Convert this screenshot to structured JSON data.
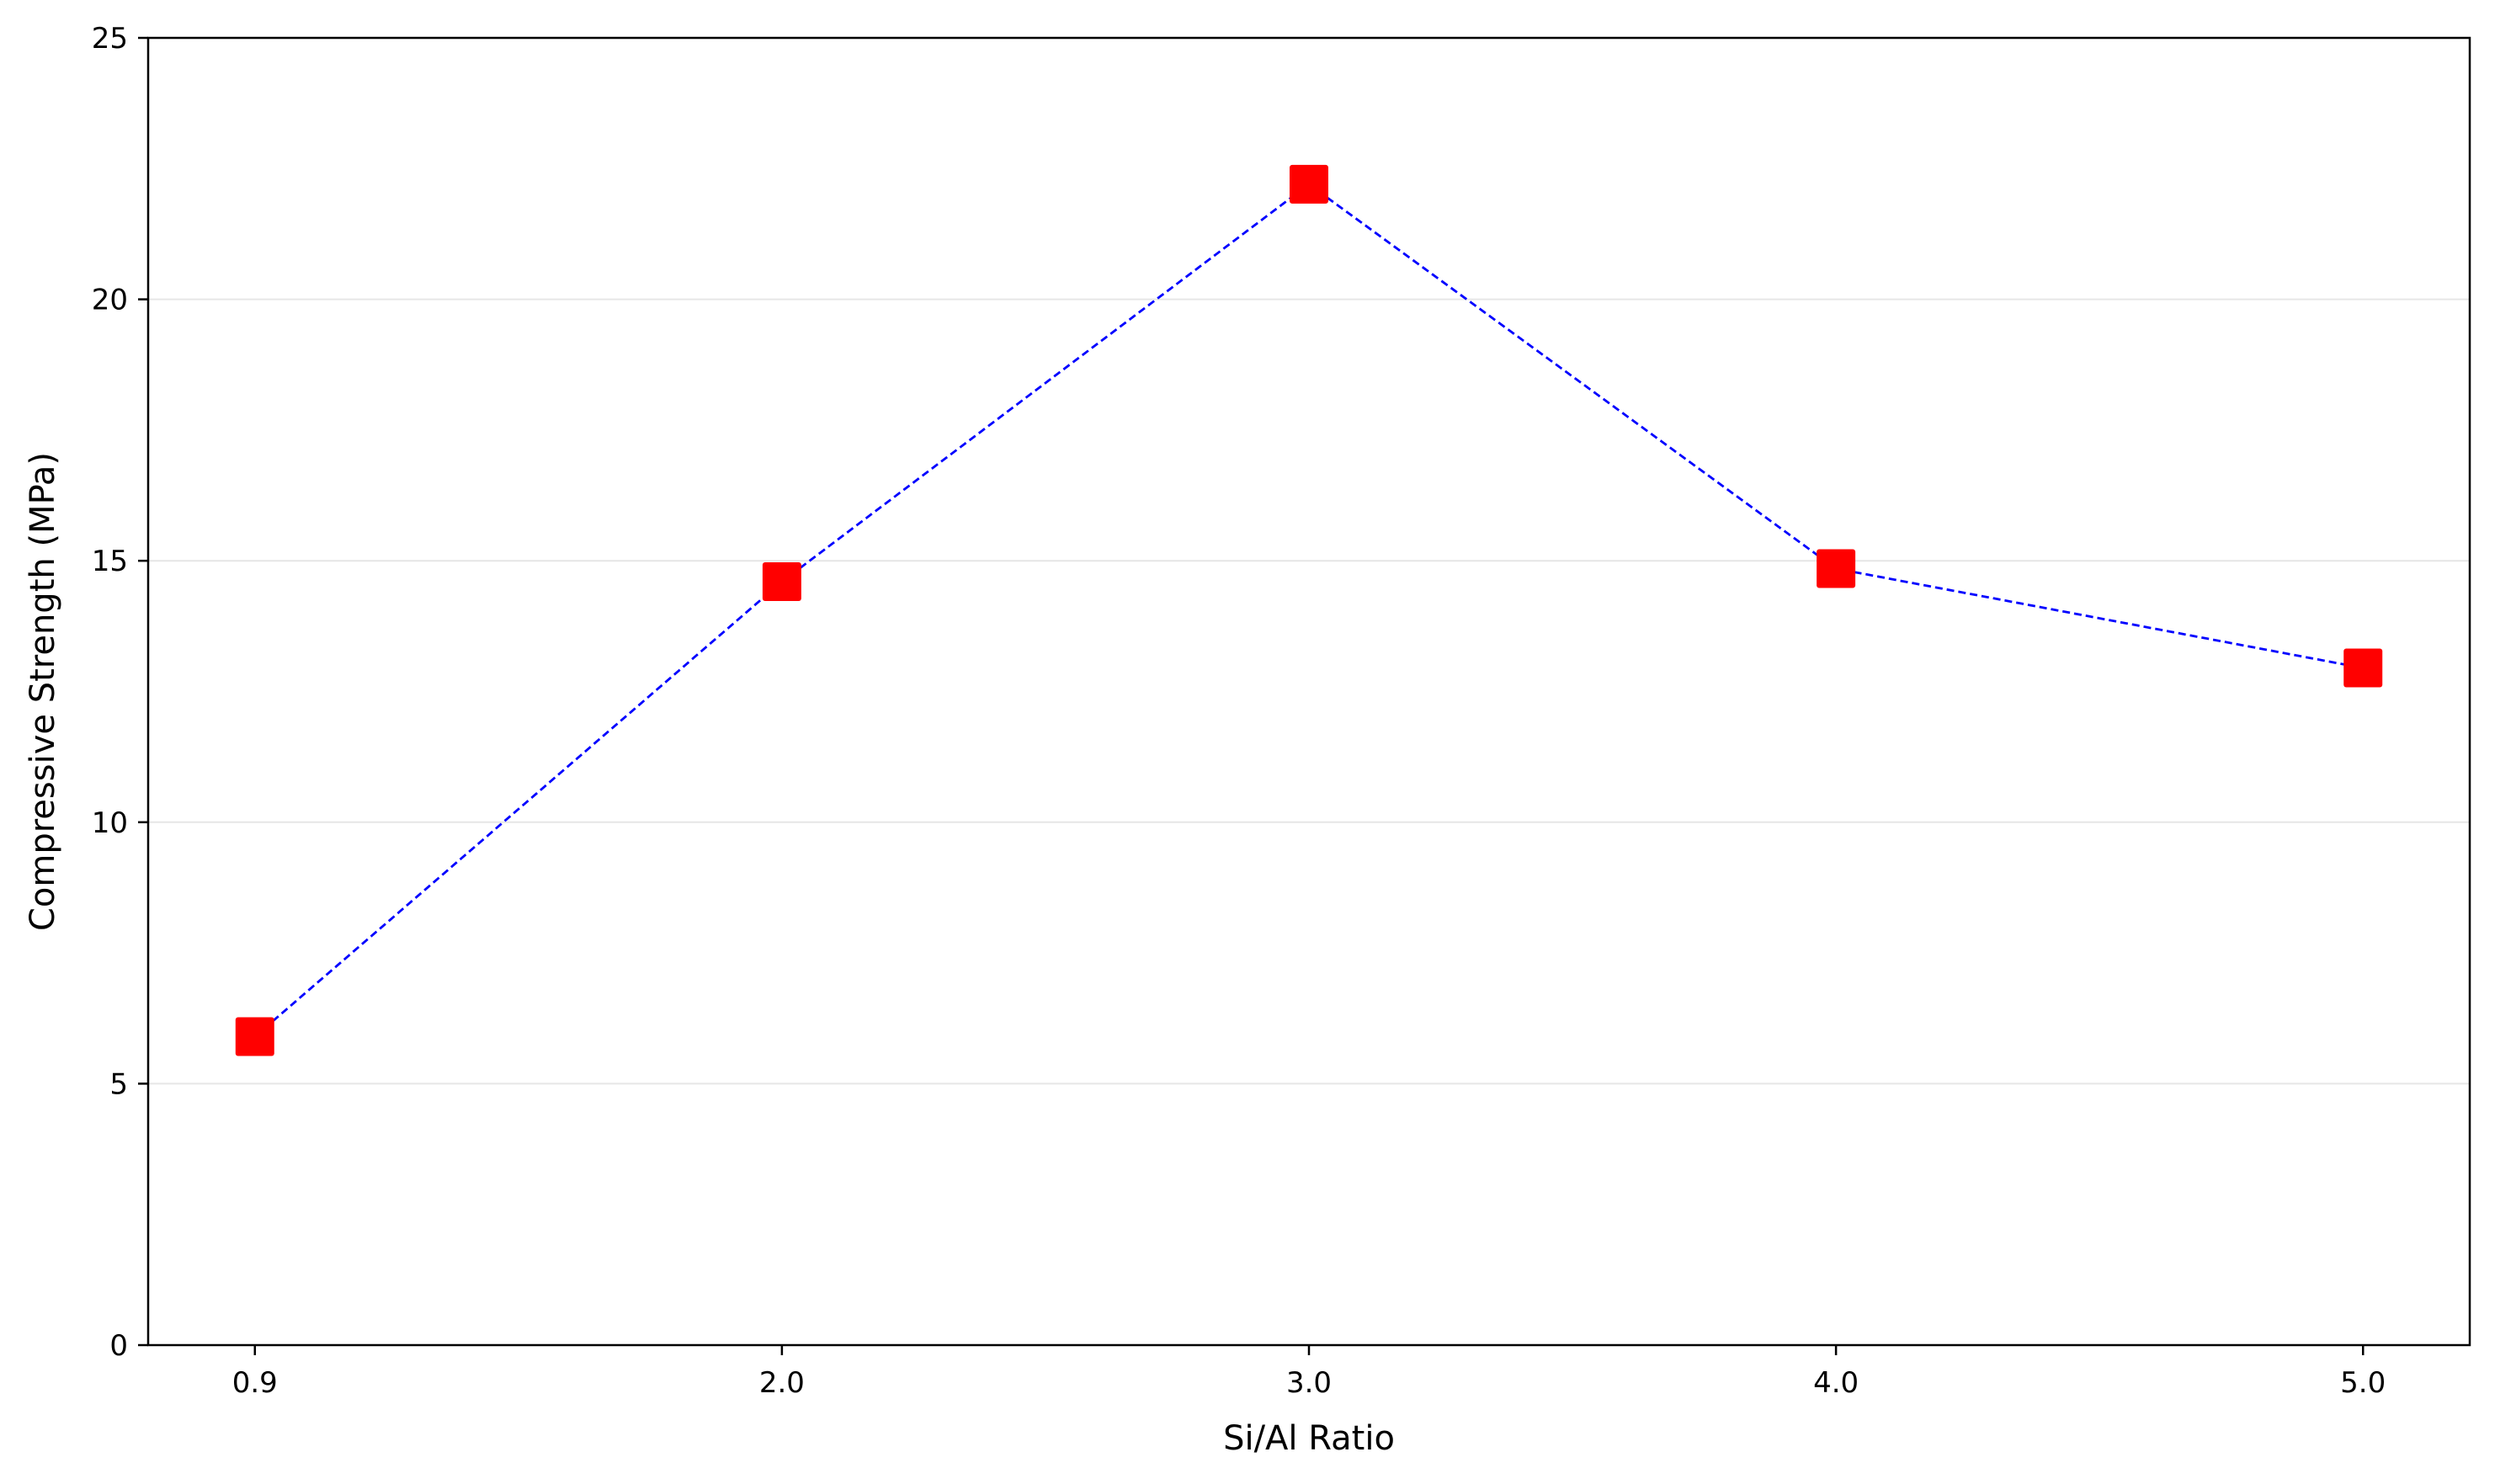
{
  "chart_data": {
    "type": "line",
    "title": "",
    "xlabel": "Si/Al Ratio",
    "ylabel": "Compressive Strength (MPa)",
    "categories": [
      "0.9",
      "2.0",
      "3.0",
      "4.0",
      "5.0"
    ],
    "series": [
      {
        "values": [
          5.9,
          14.6,
          22.2,
          14.85,
          12.95
        ],
        "line_color": "#0000ff",
        "line_style": "dashed",
        "marker": "square",
        "marker_color": "#ff0000"
      }
    ],
    "ylim": [
      0,
      25
    ],
    "yticks": [
      0,
      5,
      10,
      15,
      20,
      25
    ],
    "grid": {
      "y": true,
      "x": false,
      "color": "#e6e6e6"
    },
    "legend": "none"
  }
}
